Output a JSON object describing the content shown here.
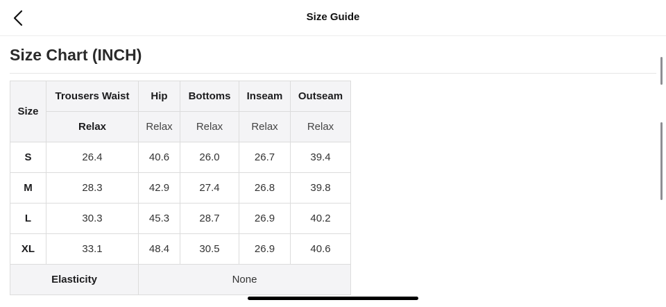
{
  "header": {
    "title": "Size Guide",
    "back_icon": "chevron-left-icon"
  },
  "section": {
    "title": "Size Chart (INCH)"
  },
  "table": {
    "size_label": "Size",
    "columns": [
      "Trousers Waist",
      "Hip",
      "Bottoms",
      "Inseam",
      "Outseam"
    ],
    "fit": [
      "Relax",
      "Relax",
      "Relax",
      "Relax",
      "Relax"
    ],
    "rows": [
      {
        "size": "S",
        "values": [
          "26.4",
          "40.6",
          "26.0",
          "26.7",
          "39.4"
        ]
      },
      {
        "size": "M",
        "values": [
          "28.3",
          "42.9",
          "27.4",
          "26.8",
          "39.8"
        ]
      },
      {
        "size": "L",
        "values": [
          "30.3",
          "45.3",
          "28.7",
          "26.9",
          "40.2"
        ]
      },
      {
        "size": "XL",
        "values": [
          "33.1",
          "48.4",
          "30.5",
          "26.9",
          "40.6"
        ]
      }
    ],
    "elasticity_label": "Elasticity",
    "elasticity_value": "None"
  }
}
